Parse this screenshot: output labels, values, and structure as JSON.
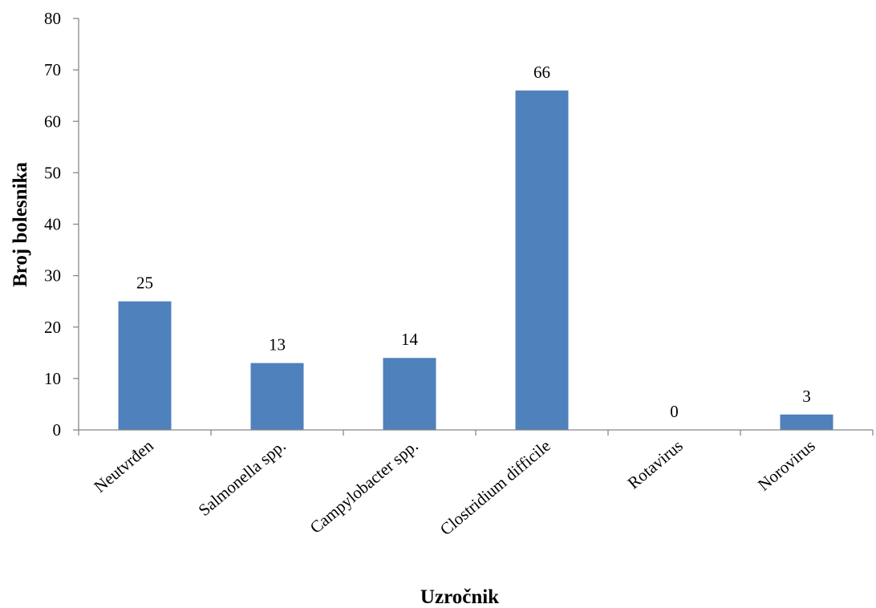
{
  "chart_data": {
    "type": "bar",
    "categories": [
      "Neutvrđen",
      "Salmonella spp.",
      "Campylobacter spp.",
      "Clostridium difficile",
      "Rotavirus",
      "Norovirus"
    ],
    "values": [
      25,
      13,
      14,
      66,
      0,
      3
    ],
    "title": "",
    "xlabel": "Uzročnik",
    "ylabel": "Broj bolesnika",
    "ylim": [
      0,
      80
    ],
    "yticks": [
      0,
      10,
      20,
      30,
      40,
      50,
      60,
      70,
      80
    ],
    "bar_color": "#4F81BD",
    "grid": false,
    "legend": "none",
    "data_labels": true
  }
}
